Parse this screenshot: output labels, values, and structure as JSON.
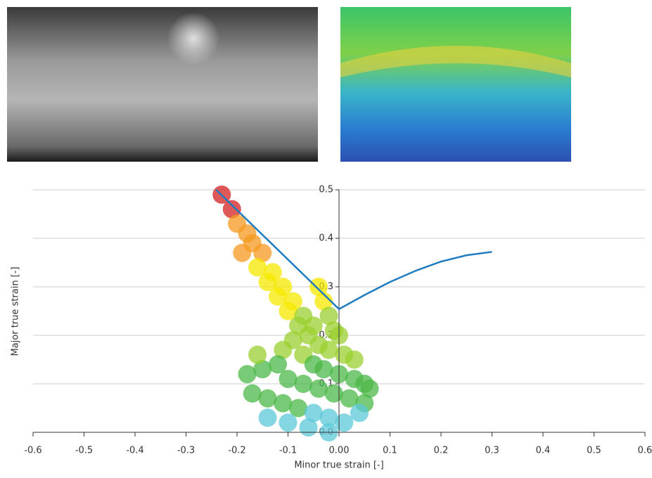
{
  "chart_data": {
    "type": "scatter",
    "xlabel": "Minor true strain [-]",
    "ylabel": "Major true strain [-]",
    "xlim": [
      -0.6,
      0.6
    ],
    "ylim": [
      0,
      0.5
    ],
    "xticks": [
      -0.6,
      -0.5,
      -0.4,
      -0.3,
      -0.2,
      -0.1,
      {
        "value": 0,
        "label": "0.00"
      },
      0.1,
      0.2,
      0.3,
      0.4,
      0.5,
      0.6
    ],
    "yticks": [
      {
        "value": 0,
        "label": "0.0"
      },
      0.1,
      0.2,
      0.3,
      0.4,
      0.5
    ],
    "grid": true,
    "colormap": [
      "#5bc8d8",
      "#4cb848",
      "#9bd030",
      "#f5e800",
      "#f59a20",
      "#d42020"
    ],
    "series": [
      {
        "type": "scatter",
        "x": [
          -0.23,
          -0.21,
          -0.2,
          -0.18,
          -0.17,
          -0.19,
          -0.15,
          -0.16,
          -0.13,
          -0.14,
          -0.11,
          -0.12,
          -0.09,
          -0.1,
          -0.07,
          -0.08,
          -0.05,
          -0.04,
          -0.03,
          -0.02,
          -0.01,
          0.0,
          -0.06,
          -0.04,
          -0.02,
          0.01,
          0.03,
          -0.09,
          -0.11,
          -0.07,
          -0.05,
          -0.03,
          0.0,
          0.03,
          0.05,
          -0.12,
          -0.15,
          -0.18,
          -0.1,
          -0.07,
          -0.04,
          -0.01,
          0.02,
          0.05,
          -0.17,
          -0.14,
          -0.11,
          -0.08,
          -0.05,
          -0.02,
          0.01,
          0.04,
          -0.14,
          -0.1,
          -0.06,
          -0.02,
          0.06,
          -0.16
        ],
        "values": [
          0.49,
          0.46,
          0.43,
          0.41,
          0.39,
          0.37,
          0.37,
          0.34,
          0.33,
          0.31,
          0.3,
          0.28,
          0.27,
          0.25,
          0.24,
          0.22,
          0.22,
          0.3,
          0.27,
          0.24,
          0.21,
          0.2,
          0.2,
          0.18,
          0.17,
          0.16,
          0.15,
          0.19,
          0.17,
          0.16,
          0.14,
          0.13,
          0.12,
          0.11,
          0.1,
          0.14,
          0.13,
          0.12,
          0.11,
          0.1,
          0.09,
          0.08,
          0.07,
          0.06,
          0.08,
          0.07,
          0.06,
          0.05,
          0.04,
          0.03,
          0.02,
          0.04,
          0.03,
          0.02,
          0.01,
          0.0,
          0.09,
          0.16
        ]
      },
      {
        "type": "line",
        "color": "#1f7bc0",
        "x": [
          -0.241,
          0,
          0.05,
          0.1,
          0.15,
          0.2,
          0.25,
          0.3
        ],
        "values": [
          0.5,
          0.254,
          0.283,
          0.31,
          0.333,
          0.352,
          0.365,
          0.372
        ]
      }
    ]
  }
}
